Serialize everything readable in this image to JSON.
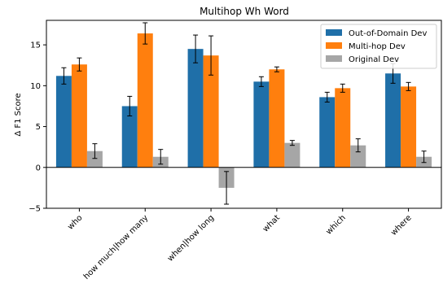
{
  "chart_data": {
    "type": "bar",
    "title": "Multihop Wh Word",
    "xlabel": "",
    "ylabel": "Δ F1 Score",
    "ylim": [
      -5,
      18
    ],
    "yticks": [
      -5,
      0,
      5,
      10,
      15
    ],
    "categories": [
      "who",
      "how much|how many",
      "when|how long",
      "what",
      "which",
      "where"
    ],
    "series": [
      {
        "name": "Out-of-Domain Dev",
        "color": "#1f6fa8",
        "values": [
          11.2,
          7.5,
          14.5,
          10.5,
          8.6,
          11.5
        ],
        "errors": [
          1.0,
          1.2,
          1.7,
          0.6,
          0.6,
          1.2
        ]
      },
      {
        "name": "Multi-hop Dev",
        "color": "#ff7f0e",
        "values": [
          12.6,
          16.4,
          13.7,
          12.0,
          9.7,
          9.9
        ],
        "errors": [
          0.8,
          1.3,
          2.4,
          0.3,
          0.5,
          0.5
        ]
      },
      {
        "name": "Original Dev",
        "color": "#a6a6a6",
        "values": [
          2.0,
          1.3,
          -2.5,
          3.0,
          2.7,
          1.3
        ],
        "errors": [
          0.9,
          0.9,
          2.0,
          0.3,
          0.8,
          0.7
        ]
      }
    ],
    "grid": false,
    "legend_position": "top-right"
  }
}
